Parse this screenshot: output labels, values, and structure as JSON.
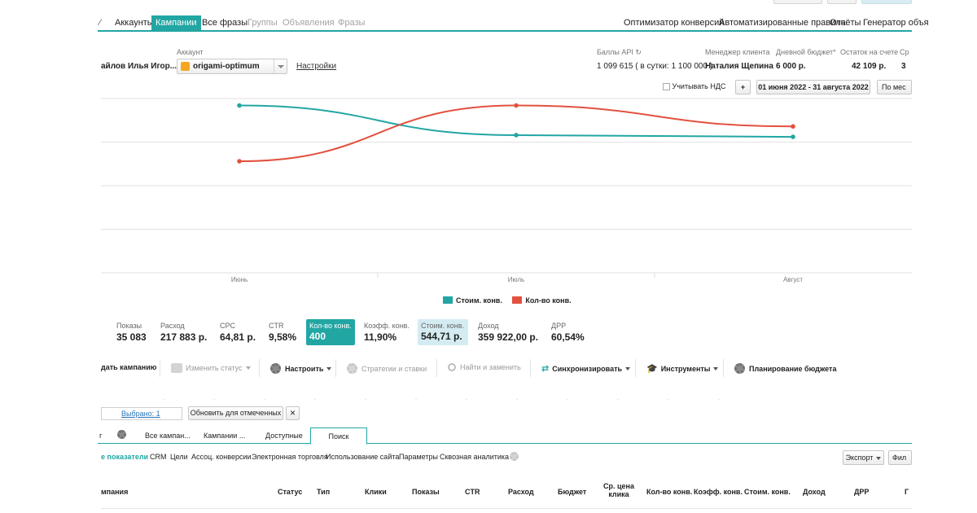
{
  "nav": {
    "items": [
      "Аккаунты",
      "Кампании",
      "Все фразы",
      "Группы",
      "Объявления",
      "Фразы"
    ],
    "right_items": [
      "Оптимизатор конверсий",
      "Автоматизированные правила",
      "Отчёты",
      "Генератор объя"
    ]
  },
  "account": {
    "user": "айлов Илья Игор...",
    "label": "Аккаунт",
    "name": "origami-optimum",
    "settings": "Настройки"
  },
  "info": {
    "api_label": "Баллы API",
    "api_value": "1 099 615 ( в сутки: 1 100 000 )",
    "manager_label": "Менеджер клиента",
    "manager_value": "Наталия Щепина",
    "budget_label": "Дневной бюджет*",
    "budget_value": "6 000 р.",
    "balance_label": "Остаток на счете",
    "balance_value": "42 109 р.",
    "extra_label": "Ср",
    "extra_value": "3"
  },
  "filters": {
    "vat": "Учитывать НДС",
    "plus": "+",
    "date_range": "01 июня 2022 - 31 августа 2022",
    "period": "По мес"
  },
  "chart_data": {
    "type": "line",
    "categories": [
      "Июнь",
      "Июль",
      "Август"
    ],
    "series": [
      {
        "name": "Стоим. конв.",
        "color": "#22a6a3",
        "values": [
          96,
          79,
          78
        ]
      },
      {
        "name": "Кол-во конв.",
        "color": "#e2513f",
        "values": [
          64,
          96,
          84
        ]
      }
    ],
    "ylim": [
      0,
      100
    ],
    "grid": true,
    "legend_position": "bottom"
  },
  "stats": [
    {
      "label": "Показы",
      "value": "35 083"
    },
    {
      "label": "Расход",
      "value": "217 883 р."
    },
    {
      "label": "CPC",
      "value": "64,81 р."
    },
    {
      "label": "CTR",
      "value": "9,58%"
    },
    {
      "label": "Кол-во конв.",
      "value": "400"
    },
    {
      "label": "Коэфф. конв.",
      "value": "11,90%"
    },
    {
      "label": "Стоим. конв.",
      "value": "544,71 р."
    },
    {
      "label": "Доход",
      "value": "359 922,00 р."
    },
    {
      "label": "ДРР",
      "value": "60,54%"
    }
  ],
  "toolbar": {
    "create": "дать кампанию",
    "status": "Изменить статус",
    "configure": "Настроить",
    "strategies": "Стратегии и ставки",
    "find": "Найти и заменить",
    "sync": "Синхронизировать",
    "tools": "Инструменты",
    "budget": "Планирование бюджета"
  },
  "selection": {
    "selected": "Выбрано: 1",
    "update": "Обновить для отмеченных",
    "close": "×"
  },
  "tabs": [
    "Все кампан...",
    "Кампании ...",
    "Доступные",
    "Поиск"
  ],
  "tabs_prefix": "г",
  "subtabs": [
    "е показатели",
    "CRM",
    "Цели",
    "Ассоц. конверсии",
    "Электронная торговля",
    "Использование сайта",
    "Параметры",
    "Сквозная аналитика"
  ],
  "export": {
    "label": "Экспорт",
    "filter": "Фил"
  },
  "columns": [
    "мпания",
    "Статус",
    "Тип",
    "Клики",
    "Показы",
    "CTR",
    "Расход",
    "Бюджет",
    "Ср. цена клика",
    "Кол-во конв.",
    "Коэфф. конв.",
    "Стоим. конв.",
    "Доход",
    "ДРР",
    "Г"
  ]
}
